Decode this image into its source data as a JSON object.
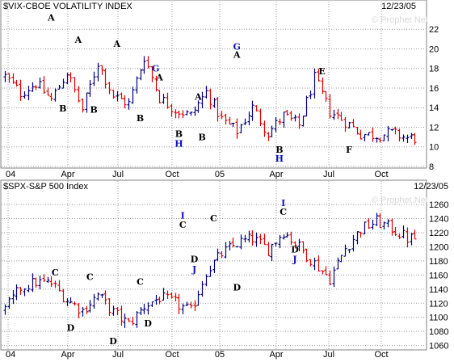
{
  "watermark": "© Prophet.Net",
  "colors": {
    "up": "#000080",
    "down": "#e00000",
    "grid": "#9a9a9a",
    "panel_bg": "#ffffff",
    "frame": "#808080",
    "ann_black": "#000000",
    "ann_blue": "#1010c0"
  },
  "x_ticks": [
    "04",
    "Apr",
    "Jul",
    "Oct",
    "05",
    "Apr",
    "Jul",
    "Oct"
  ],
  "chart_data": [
    {
      "type": "ohlc",
      "title": "$VIX-CBOE VOLATILITY INDEX",
      "date": "12/23/05",
      "ylim": [
        8,
        23.5
      ],
      "yticks": [
        8,
        10,
        12,
        14,
        16,
        18,
        20,
        22
      ],
      "grid": true,
      "x": [
        0,
        4,
        8,
        12,
        16,
        20,
        24,
        28,
        32,
        36,
        40,
        44,
        48,
        52,
        56,
        60,
        64,
        68,
        72,
        76,
        80,
        84,
        88,
        92,
        96,
        100,
        104
      ],
      "close": [
        17.2,
        15.5,
        16.5,
        14.8,
        17.6,
        13.8,
        18.6,
        15.2,
        14.4,
        19.2,
        15.0,
        13.8,
        13.2,
        15.6,
        12.8,
        11.6,
        14.0,
        11.4,
        13.2,
        12.2,
        17.0,
        13.6,
        12.6,
        11.3,
        11.2,
        11.4,
        10.9
      ],
      "annotations": [
        {
          "t": "A",
          "x": 12,
          "y": 22.9,
          "color": "black"
        },
        {
          "t": "B",
          "x": 15,
          "y": 13.6,
          "color": "black"
        },
        {
          "t": "A",
          "x": 19,
          "y": 20.6,
          "color": "black"
        },
        {
          "t": "B",
          "x": 23,
          "y": 13.5,
          "color": "black"
        },
        {
          "t": "A",
          "x": 29,
          "y": 20.2,
          "color": "black"
        },
        {
          "t": "G",
          "x": 39,
          "y": 17.7,
          "color": "blue"
        },
        {
          "t": "A",
          "x": 40,
          "y": 16.8,
          "color": "black"
        },
        {
          "t": "B",
          "x": 35,
          "y": 12.6,
          "color": "black"
        },
        {
          "t": "B",
          "x": 45,
          "y": 11.0,
          "color": "black"
        },
        {
          "t": "H",
          "x": 45,
          "y": 10.0,
          "color": "blue"
        },
        {
          "t": "A",
          "x": 50,
          "y": 14.8,
          "color": "black"
        },
        {
          "t": "B",
          "x": 51,
          "y": 10.7,
          "color": "black"
        },
        {
          "t": "G",
          "x": 60,
          "y": 19.9,
          "color": "blue"
        },
        {
          "t": "A",
          "x": 60,
          "y": 19.1,
          "color": "black"
        },
        {
          "t": "B",
          "x": 71,
          "y": 9.4,
          "color": "black"
        },
        {
          "t": "H",
          "x": 71,
          "y": 8.5,
          "color": "blue"
        },
        {
          "t": "E",
          "x": 82,
          "y": 17.4,
          "color": "black"
        },
        {
          "t": "F",
          "x": 89,
          "y": 9.4,
          "color": "black"
        }
      ]
    },
    {
      "type": "ohlc",
      "title": "$SPX-S&P 500 Index",
      "date": "12/23/05",
      "ylim": [
        1055,
        1275
      ],
      "yticks": [
        1060,
        1080,
        1100,
        1120,
        1140,
        1160,
        1180,
        1200,
        1220,
        1240,
        1260
      ],
      "grid": true,
      "x": [
        0,
        4,
        8,
        12,
        16,
        20,
        24,
        28,
        32,
        36,
        40,
        44,
        48,
        52,
        56,
        60,
        64,
        68,
        72,
        76,
        80,
        84,
        88,
        92,
        96,
        100,
        104
      ],
      "close": [
        1110,
        1142,
        1150,
        1148,
        1125,
        1110,
        1132,
        1107,
        1090,
        1116,
        1128,
        1120,
        1108,
        1165,
        1190,
        1205,
        1212,
        1196,
        1222,
        1200,
        1177,
        1155,
        1198,
        1225,
        1236,
        1226,
        1212
      ],
      "annotations": [
        {
          "t": "C",
          "x": 13,
          "y": 1159,
          "color": "black"
        },
        {
          "t": "D",
          "x": 17,
          "y": 1081,
          "color": "black"
        },
        {
          "t": "C",
          "x": 22,
          "y": 1153,
          "color": "black"
        },
        {
          "t": "D",
          "x": 28,
          "y": 1062,
          "color": "black"
        },
        {
          "t": "C",
          "x": 35,
          "y": 1146,
          "color": "black"
        },
        {
          "t": "D",
          "x": 37,
          "y": 1087,
          "color": "black"
        },
        {
          "t": "I",
          "x": 46,
          "y": 1240,
          "color": "blue"
        },
        {
          "t": "C",
          "x": 46,
          "y": 1227,
          "color": "black"
        },
        {
          "t": "D",
          "x": 49,
          "y": 1178,
          "color": "black"
        },
        {
          "t": "J",
          "x": 49,
          "y": 1164,
          "color": "blue"
        },
        {
          "t": "C",
          "x": 54,
          "y": 1236,
          "color": "black"
        },
        {
          "t": "D",
          "x": 60,
          "y": 1138,
          "color": "black"
        },
        {
          "t": "I",
          "x": 72,
          "y": 1258,
          "color": "blue"
        },
        {
          "t": "C",
          "x": 72,
          "y": 1245,
          "color": "black"
        },
        {
          "t": "D",
          "x": 75,
          "y": 1192,
          "color": "black"
        },
        {
          "t": "J",
          "x": 75,
          "y": 1178,
          "color": "blue"
        }
      ]
    }
  ]
}
